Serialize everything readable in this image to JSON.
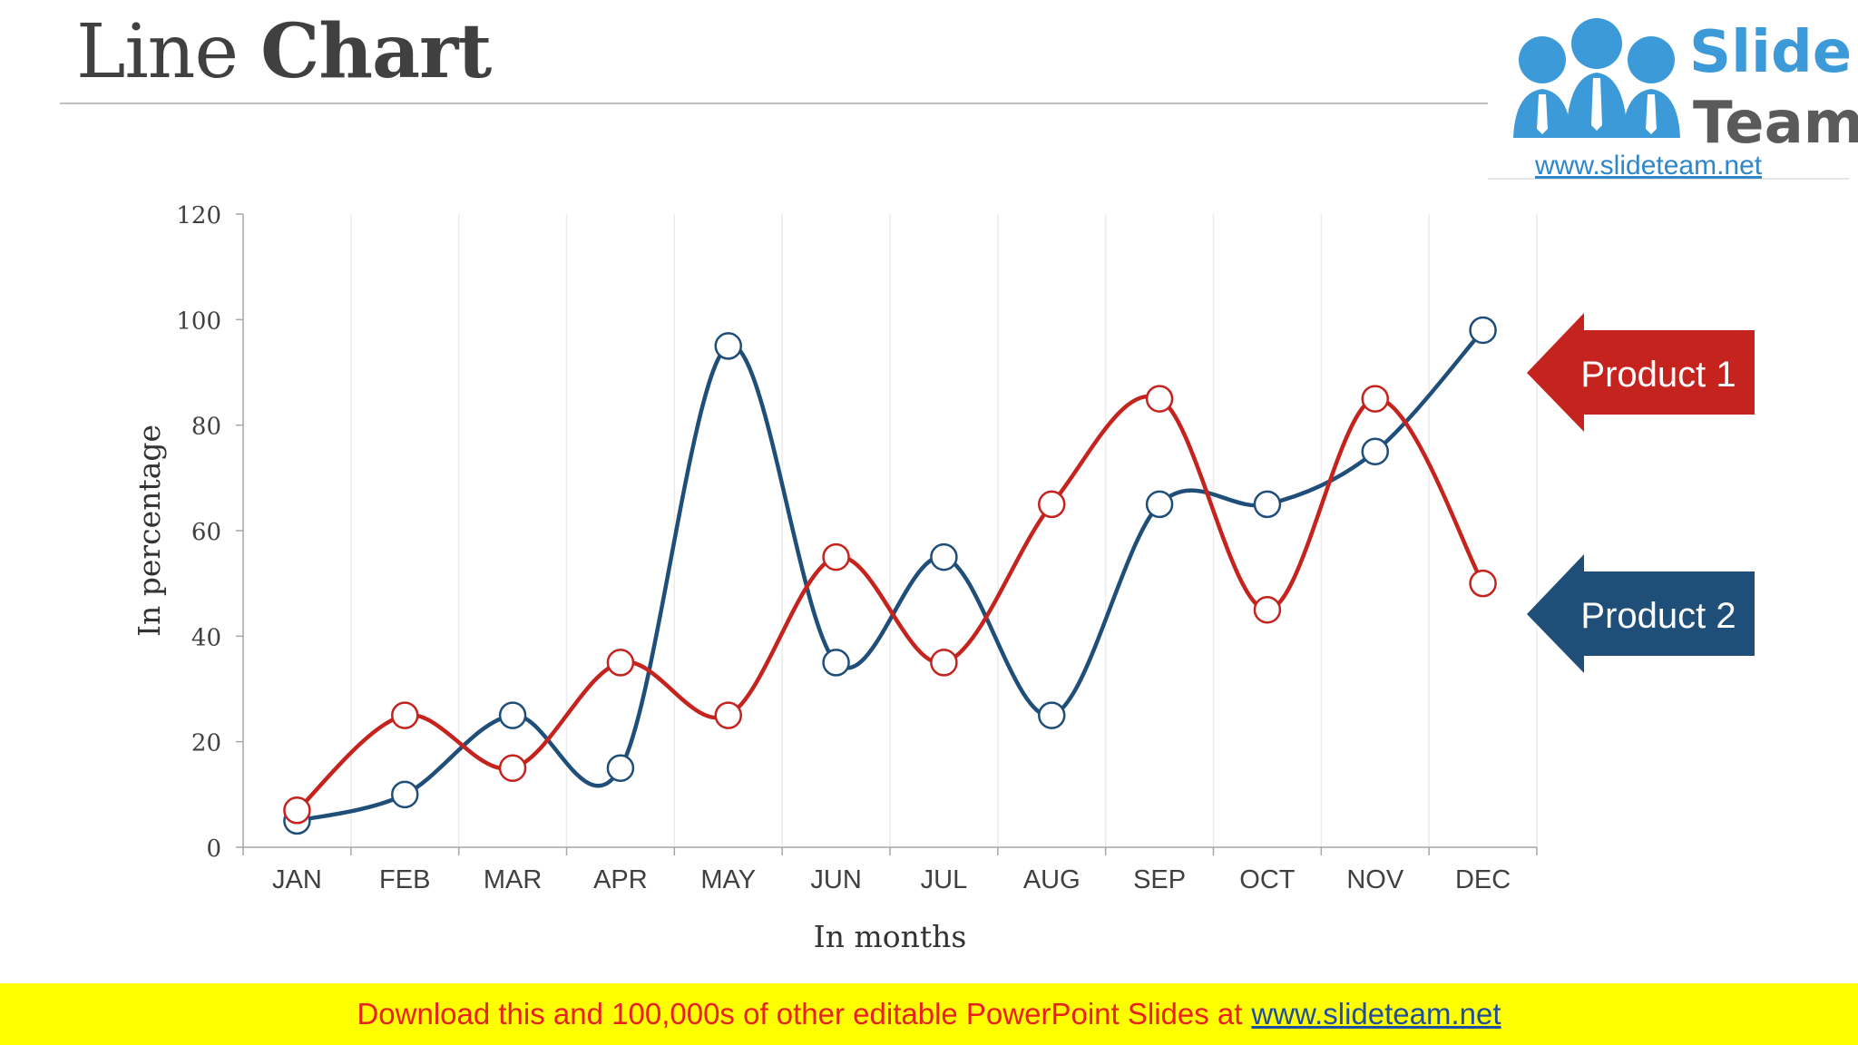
{
  "slide": {
    "title_light": "Line",
    "title_bold": "Chart"
  },
  "logo": {
    "word1": "Slide",
    "word2": "Team",
    "url": "www.slideteam.net",
    "colors": {
      "blue": "#3d9ad8",
      "gray": "#5a5a5a"
    }
  },
  "footer": {
    "text": "Download this and 100,000s of other editable PowerPoint Slides at",
    "link": "www.slideteam.net"
  },
  "chart_data": {
    "type": "line",
    "smooth": true,
    "categories": [
      "JAN",
      "FEB",
      "MAR",
      "APR",
      "MAY",
      "JUN",
      "JUL",
      "AUG",
      "SEP",
      "OCT",
      "NOV",
      "DEC"
    ],
    "series": [
      {
        "name": "Product 1",
        "color": "#c5231e",
        "values": [
          7,
          25,
          15,
          35,
          25,
          55,
          35,
          65,
          85,
          45,
          85,
          50
        ]
      },
      {
        "name": "Product 2",
        "color": "#1f4e79",
        "values": [
          5,
          10,
          25,
          15,
          95,
          35,
          55,
          25,
          65,
          65,
          75,
          98
        ]
      }
    ],
    "xlabel": "In months",
    "ylabel": "In percentage",
    "ylim": [
      0,
      120
    ],
    "yticks": [
      0,
      20,
      40,
      60,
      80,
      100,
      120
    ],
    "grid": "vertical",
    "legend": "right-callouts"
  }
}
